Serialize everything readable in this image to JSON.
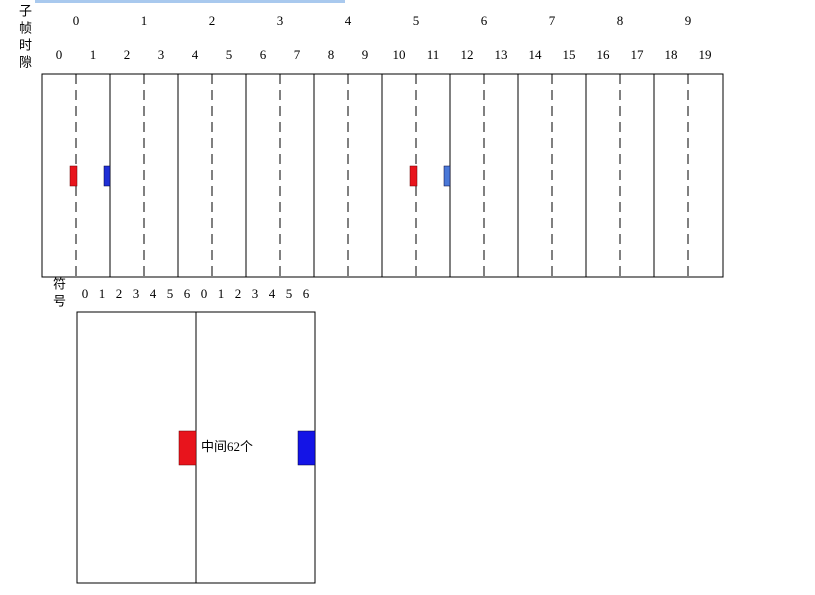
{
  "subframe_label": "子帧",
  "slot_label": "时隙",
  "subframes": [
    0,
    1,
    2,
    3,
    4,
    5,
    6,
    7,
    8,
    9
  ],
  "slots": [
    0,
    1,
    2,
    3,
    4,
    5,
    6,
    7,
    8,
    9,
    10,
    11,
    12,
    13,
    14,
    15,
    16,
    17,
    18,
    19
  ],
  "symbol_label": "符号",
  "symbols": [
    [
      0,
      1,
      2,
      3,
      4,
      5,
      6
    ],
    [
      0,
      1,
      2,
      3,
      4,
      5,
      6
    ]
  ],
  "annotation": "中间62个"
}
